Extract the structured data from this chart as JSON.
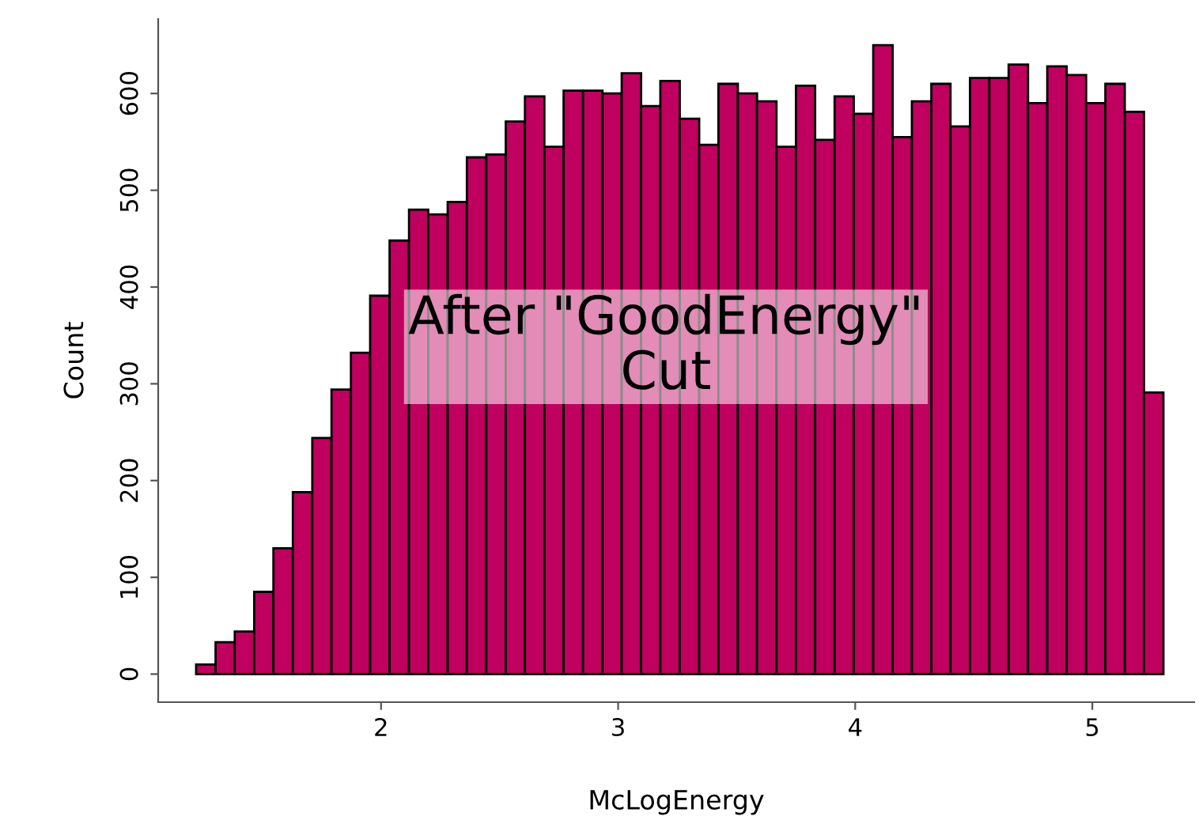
{
  "chart_data": {
    "type": "histogram",
    "xlabel": "McLogEnergy",
    "ylabel": "Count",
    "bins": [
      1.22,
      1.302,
      1.383,
      1.465,
      1.546,
      1.628,
      1.71,
      1.791,
      1.873,
      1.954,
      2.036,
      2.118,
      2.199,
      2.281,
      2.362,
      2.444,
      2.526,
      2.607,
      2.689,
      2.77,
      2.852,
      2.934,
      3.015,
      3.097,
      3.178,
      3.26,
      3.342,
      3.423,
      3.505,
      3.586,
      3.668,
      3.75,
      3.831,
      3.913,
      3.994,
      4.076,
      4.158,
      4.239,
      4.321,
      4.402,
      4.484,
      4.566,
      4.647,
      4.729,
      4.81,
      4.892,
      4.974,
      5.055,
      5.137,
      5.218,
      5.3
    ],
    "values": [
      10,
      33,
      44,
      85,
      130,
      188,
      244,
      294,
      332,
      391,
      448,
      480,
      475,
      488,
      534,
      537,
      571,
      597,
      545,
      603,
      603,
      600,
      621,
      587,
      613,
      574,
      547,
      610,
      600,
      592,
      545,
      608,
      552,
      597,
      579,
      650,
      555,
      592,
      610,
      566,
      616,
      616,
      630,
      590,
      628,
      619,
      590,
      610,
      581,
      291
    ],
    "color": "#bf005f",
    "xlim": [
      1.06,
      5.43
    ],
    "ylim": [
      -29,
      677
    ],
    "xticks": [
      2,
      3,
      4,
      5
    ],
    "yticks": [
      0,
      100,
      200,
      300,
      400,
      500,
      600
    ],
    "grid": false,
    "annotations": [
      "After \"GoodEnergy\"\nCut"
    ]
  }
}
